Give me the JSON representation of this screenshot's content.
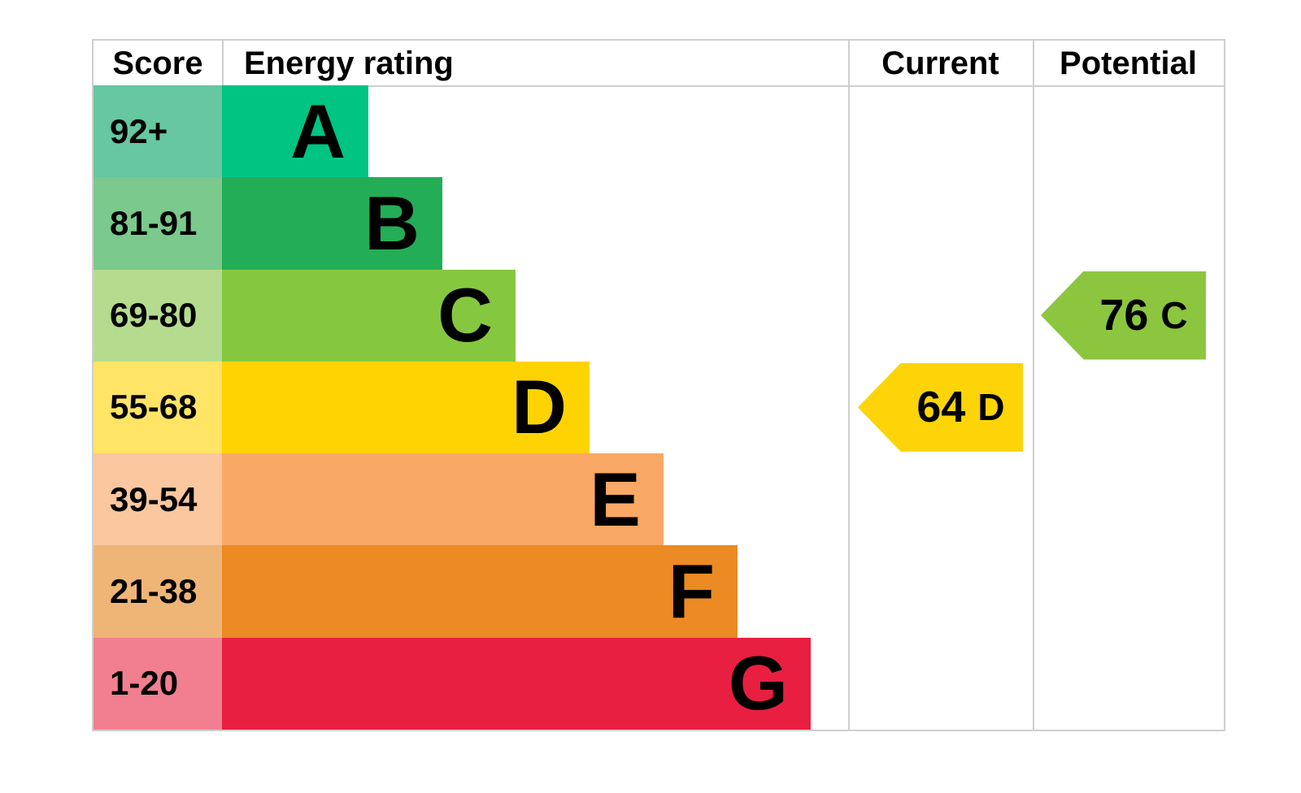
{
  "table": {
    "headers": {
      "score": "Score",
      "rating": "Energy rating",
      "current": "Current",
      "potential": "Potential"
    }
  },
  "chart_data": {
    "type": "table",
    "description": "EPC energy-efficiency rating chart with banded staircase bars and current/potential rating arrows",
    "bands": [
      {
        "letter": "A",
        "score_range": "92+",
        "color": "#00c482",
        "tint": "#66c7a0"
      },
      {
        "letter": "B",
        "score_range": "81-91",
        "color": "#23ad57",
        "tint": "#7bc98c"
      },
      {
        "letter": "C",
        "score_range": "69-80",
        "color": "#85c840",
        "tint": "#b5dc8e"
      },
      {
        "letter": "D",
        "score_range": "55-68",
        "color": "#ffd301",
        "tint": "#ffe466"
      },
      {
        "letter": "E",
        "score_range": "39-54",
        "color": "#f9a865",
        "tint": "#fac79e"
      },
      {
        "letter": "F",
        "score_range": "21-38",
        "color": "#ec8a23",
        "tint": "#efb577"
      },
      {
        "letter": "G",
        "score_range": "1-20",
        "color": "#e81f40",
        "tint": "#f17f90"
      }
    ],
    "current": {
      "score": 64,
      "band": "D",
      "color": "#fdd408"
    },
    "potential": {
      "score": 76,
      "band": "C",
      "color": "#8cc63f"
    },
    "legend_position": "none",
    "grid": true
  }
}
